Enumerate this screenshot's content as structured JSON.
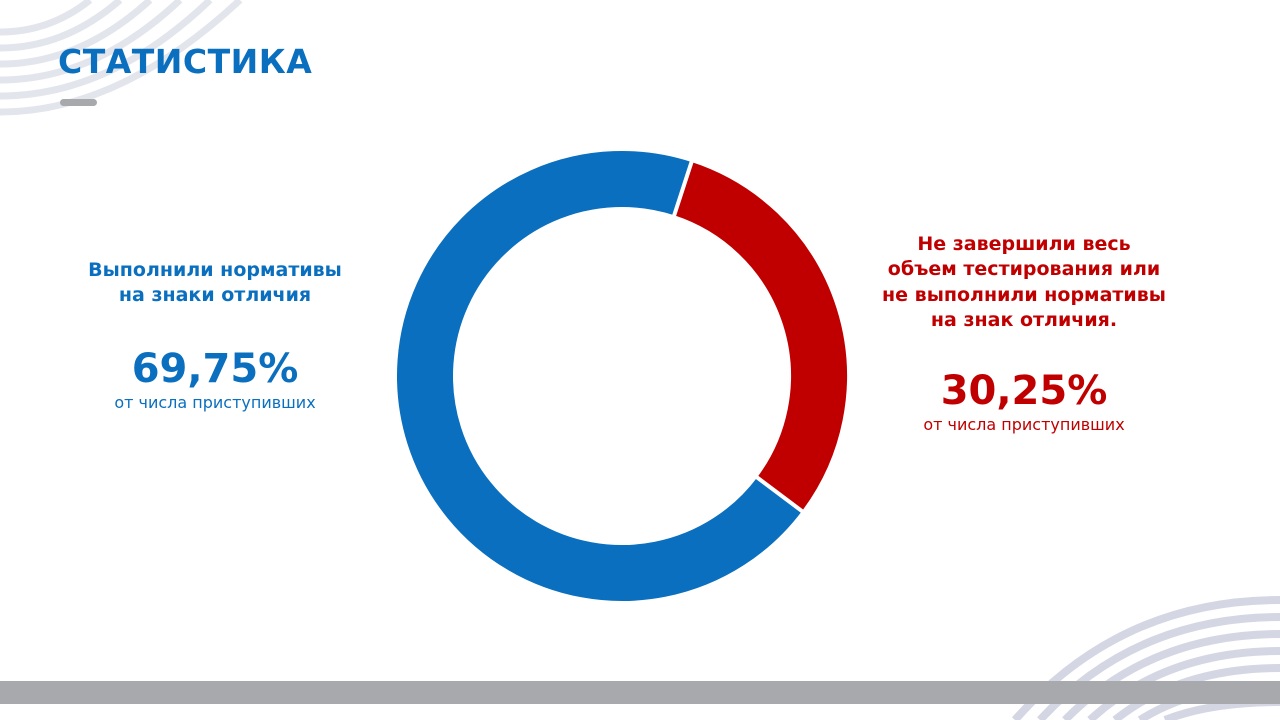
{
  "slide": {
    "title": "СТАТИСТИКА",
    "colors": {
      "brand_blue": "#0A6FBE",
      "brand_red": "#C00000",
      "bar_gray": "#A7A9AC",
      "deco_lines": "#D9DCE6",
      "underline_gray": "#A7A9AC"
    }
  },
  "left_info": {
    "label_line1": "Выполнили нормативы",
    "label_line2": "на знаки отличия",
    "percent": "69,75%",
    "sub": "от числа приступивших"
  },
  "right_info": {
    "label_line1": "Не завершили весь",
    "label_line2": "объем тестирования или",
    "label_line3": "не выполнили нормативы",
    "label_line4": "на знак отличия.",
    "percent": "30,25%",
    "sub": "от числа приступивших"
  },
  "chart_data": {
    "type": "pie",
    "variant": "donut",
    "title": "",
    "slices": [
      {
        "label": "Выполнили нормативы на знаки отличия",
        "value": 69.75,
        "color": "#0A6FBE"
      },
      {
        "label": "Не завершили весь объем тестирования или не выполнили нормативы на знак отличия.",
        "value": 30.25,
        "color": "#C00000"
      }
    ],
    "legend": "none"
  }
}
